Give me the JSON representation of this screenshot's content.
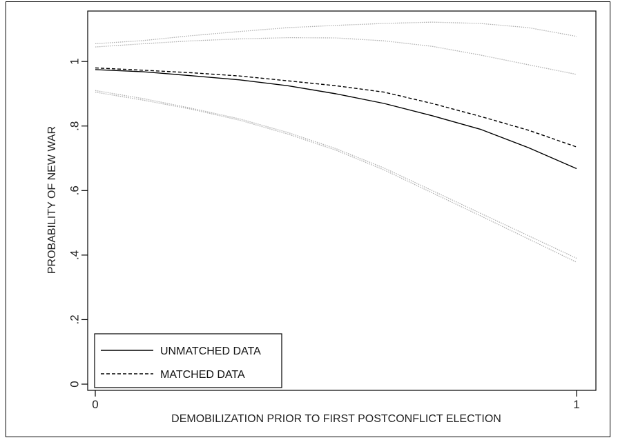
{
  "chart_data": {
    "type": "line",
    "xlabel": "DEMOBILIZATION PRIOR TO FIRST POSTCONFLICT ELECTION",
    "ylabel": "PROBABILITY OF NEW WAR",
    "xlim": [
      0,
      1
    ],
    "ylim": [
      0,
      1.15
    ],
    "x_ticks": [
      0,
      1
    ],
    "x_tick_labels": [
      "0",
      "1"
    ],
    "y_ticks": [
      0,
      0.2,
      0.4,
      0.6,
      0.8,
      1
    ],
    "y_tick_labels": [
      "0",
      ".2",
      ".4",
      ".6",
      ".8",
      "1"
    ],
    "grid": false,
    "legend_position": "bottom-left",
    "series": [
      {
        "name": "UNMATCHED DATA",
        "style": "solid",
        "color": "#000000",
        "x": [
          0,
          0.1,
          0.2,
          0.3,
          0.4,
          0.5,
          0.6,
          0.7,
          0.8,
          0.9,
          1.0
        ],
        "y": [
          0.975,
          0.968,
          0.956,
          0.943,
          0.925,
          0.9,
          0.87,
          0.832,
          0.79,
          0.733,
          0.668
        ]
      },
      {
        "name": "MATCHED DATA",
        "style": "dashed",
        "color": "#000000",
        "x": [
          0,
          0.1,
          0.2,
          0.3,
          0.4,
          0.5,
          0.6,
          0.7,
          0.8,
          0.9,
          1.0
        ],
        "y": [
          0.98,
          0.973,
          0.965,
          0.955,
          0.94,
          0.925,
          0.905,
          0.87,
          0.83,
          0.787,
          0.735
        ]
      },
      {
        "style": "dotted",
        "color": "#b0b0b0",
        "x": [
          0,
          0.1,
          0.2,
          0.3,
          0.4,
          0.5,
          0.6,
          0.7,
          0.8,
          0.9,
          1.0
        ],
        "y": [
          1.055,
          1.065,
          1.08,
          1.093,
          1.105,
          1.112,
          1.118,
          1.122,
          1.118,
          1.105,
          1.078
        ]
      },
      {
        "style": "dotted",
        "color": "#b0b0b0",
        "x": [
          0,
          0.1,
          0.2,
          0.3,
          0.4,
          0.5,
          0.6,
          0.7,
          0.8,
          0.9,
          1.0
        ],
        "y": [
          1.045,
          1.055,
          1.064,
          1.07,
          1.074,
          1.073,
          1.064,
          1.047,
          1.02,
          0.99,
          0.96
        ]
      },
      {
        "style": "dotted",
        "color": "#b0b0b0",
        "x": [
          0,
          0.1,
          0.2,
          0.3,
          0.4,
          0.5,
          0.6,
          0.7,
          0.8,
          0.9,
          1.0
        ],
        "y": [
          0.91,
          0.885,
          0.855,
          0.822,
          0.78,
          0.73,
          0.67,
          0.6,
          0.53,
          0.46,
          0.39
        ]
      },
      {
        "style": "dotted",
        "color": "#b0b0b0",
        "x": [
          0,
          0.1,
          0.2,
          0.3,
          0.4,
          0.5,
          0.6,
          0.7,
          0.8,
          0.9,
          1.0
        ],
        "y": [
          0.905,
          0.88,
          0.852,
          0.818,
          0.775,
          0.725,
          0.664,
          0.593,
          0.522,
          0.45,
          0.378
        ]
      }
    ]
  }
}
